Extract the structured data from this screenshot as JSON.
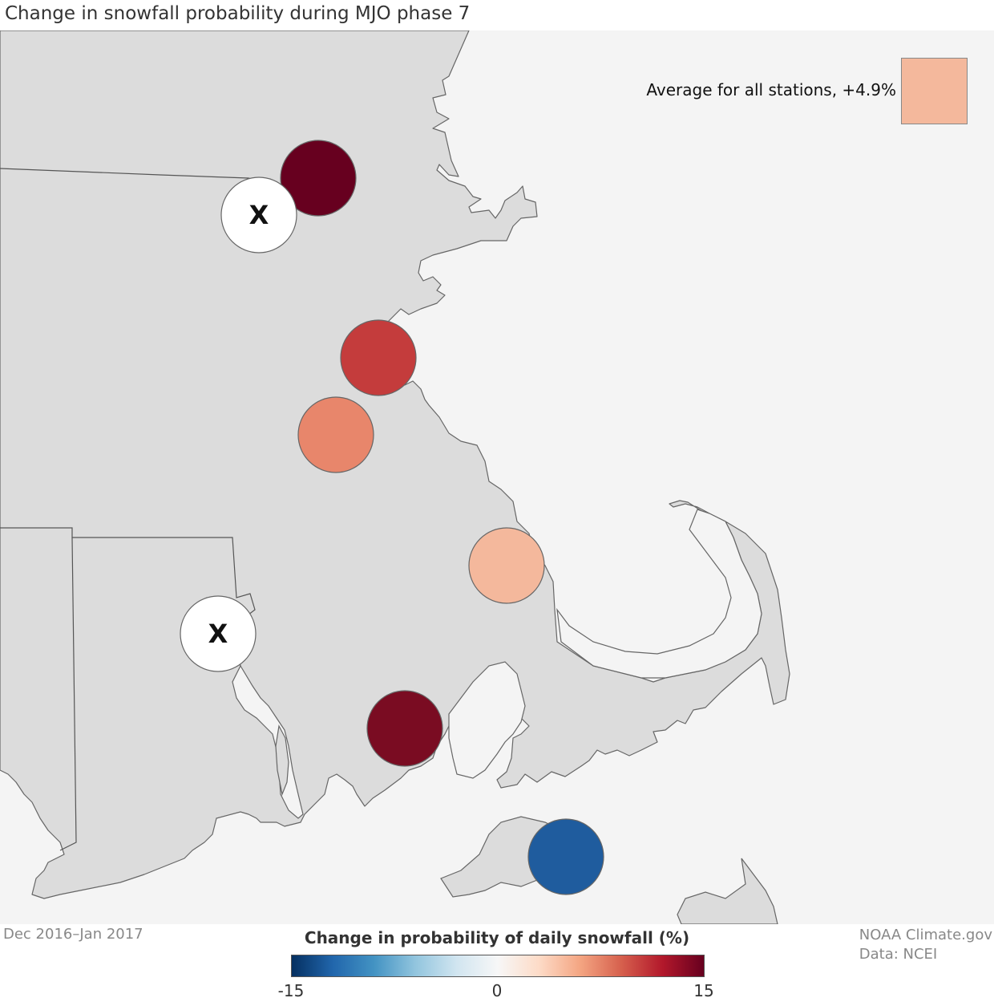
{
  "title": "Change in snowfall probability during MJO phase 7",
  "legend": {
    "average_label": "Average for all stations, +4.9%",
    "average_value": 4.9,
    "average_color": "#f4b89c"
  },
  "footer": {
    "date_range": "Dec 2016–Jan 2017",
    "credit": "NOAA Climate.gov",
    "source": "Data: NCEI"
  },
  "color_scale": {
    "title": "Change in probability of daily snowfall (%)",
    "min_label": "-15",
    "mid_label": "0",
    "max_label": "15",
    "min": -15,
    "max": 15
  },
  "stations": [
    {
      "id": "s1",
      "color": "#67001f",
      "missing": false
    },
    {
      "id": "s2",
      "color": "#ffffff",
      "missing": true,
      "mark": "X"
    },
    {
      "id": "s3",
      "color": "#c43c3c",
      "missing": false
    },
    {
      "id": "s4",
      "color": "#e8866b",
      "missing": false
    },
    {
      "id": "s5",
      "color": "#f4b89c",
      "missing": false
    },
    {
      "id": "s6",
      "color": "#ffffff",
      "missing": true,
      "mark": "X"
    },
    {
      "id": "s7",
      "color": "#7a0c22",
      "missing": false
    },
    {
      "id": "s8",
      "color": "#1f5c9e",
      "missing": false
    }
  ],
  "colors": {
    "land": "#dcdcdc",
    "water": "#f4f4f4",
    "border": "#666666"
  }
}
